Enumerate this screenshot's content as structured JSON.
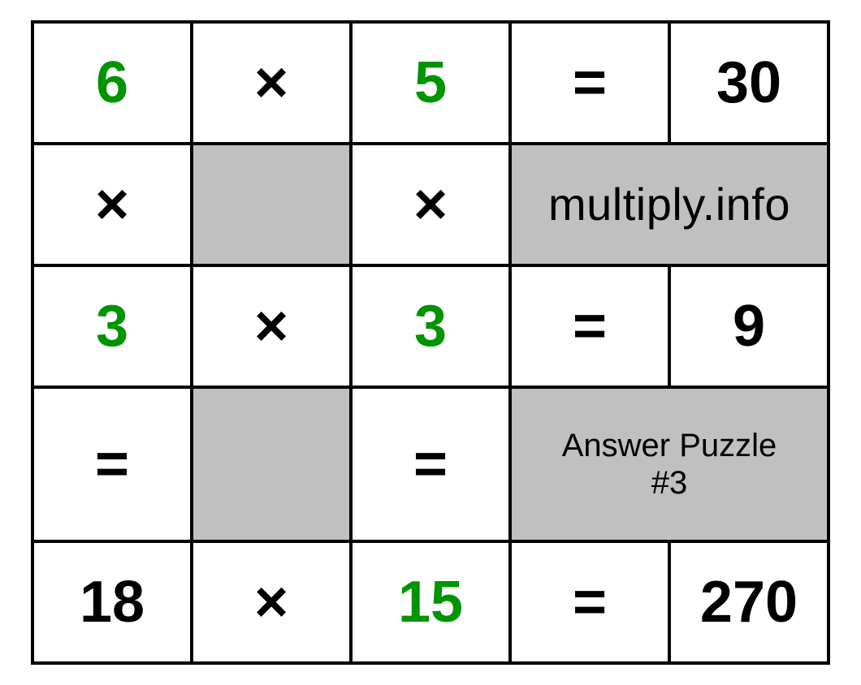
{
  "puzzle": {
    "type": "table",
    "background_color": "#ffffff",
    "shade_color": "#c0c0c1",
    "border_color": "#000000",
    "text_color": "#000000",
    "highlight_color": "#009400",
    "number_fontsize": 72,
    "operator_fontsize": 72,
    "site_fontsize": 56,
    "answer_fontsize": 40,
    "border_width": 4,
    "rows": 5,
    "cols": 5,
    "site_label": "multiply.info",
    "answer_label_line1": "Answer Puzzle",
    "answer_label_line2": "#3",
    "cells": {
      "r0": {
        "c0": "6",
        "c1": "×",
        "c2": "5",
        "c3": "=",
        "c4": "30"
      },
      "r1": {
        "c0": "×",
        "c1": "",
        "c2": "×"
      },
      "r2": {
        "c0": "3",
        "c1": "×",
        "c2": "3",
        "c3": "=",
        "c4": "9"
      },
      "r3": {
        "c0": "=",
        "c1": "",
        "c2": "="
      },
      "r4": {
        "c0": "18",
        "c1": "×",
        "c2": "15",
        "c3": "=",
        "c4": "270"
      }
    }
  }
}
